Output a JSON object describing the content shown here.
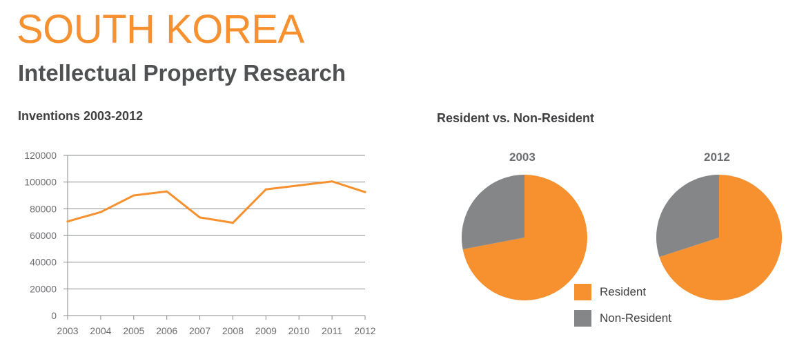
{
  "header": {
    "title": "SOUTH KOREA",
    "subtitle": "Intellectual Property Research"
  },
  "colors": {
    "accent": "#f7912f",
    "resident": "#f7912f",
    "non_resident": "#858688",
    "text": "#505153"
  },
  "line_panel": {
    "title": "Inventions 2003-2012"
  },
  "pie_panel": {
    "title": "Resident vs. Non-Resident",
    "legend": [
      {
        "label": "Resident"
      },
      {
        "label": "Non-Resident"
      }
    ]
  },
  "chart_data": [
    {
      "type": "line",
      "title": "Inventions 2003-2012",
      "x": [
        "2003",
        "2004",
        "2005",
        "2006",
        "2007",
        "2008",
        "2009",
        "2010",
        "2011",
        "2012"
      ],
      "series": [
        {
          "values": [
            70500,
            77500,
            90000,
            93000,
            73500,
            69500,
            94500,
            97500,
            100500,
            92500
          ]
        }
      ],
      "yticks": [
        0,
        20000,
        40000,
        60000,
        80000,
        100000,
        120000
      ],
      "ylim": [
        0,
        120000
      ],
      "grid": true
    },
    {
      "type": "pie",
      "title": "2003",
      "categories": [
        "Resident",
        "Non-Resident"
      ],
      "values": [
        72,
        28
      ]
    },
    {
      "type": "pie",
      "title": "2012",
      "categories": [
        "Resident",
        "Non-Resident"
      ],
      "values": [
        70,
        30
      ]
    }
  ]
}
